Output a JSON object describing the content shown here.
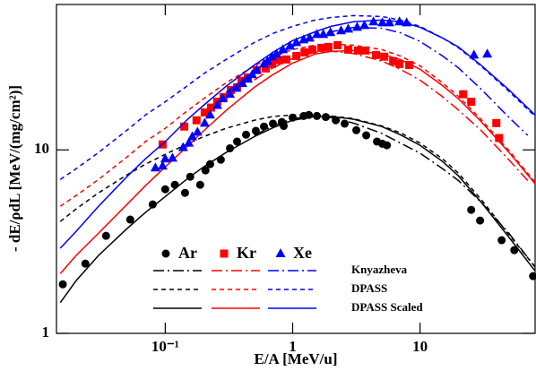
{
  "chart_data": {
    "type": "scatter",
    "x_label": "E/A [MeV/u]",
    "y_label": "- dE/ρdL [MeV/(mg/cm²)]",
    "x_log": true,
    "y_log": true,
    "xlim": [
      0.014,
      80
    ],
    "ylim": [
      1,
      62
    ],
    "xticks": [
      {
        "value": 0.1,
        "label": "10⁻¹"
      },
      1,
      10
    ],
    "yticks": [
      1,
      10
    ],
    "models": [
      {
        "name": "Knyazheva",
        "dash": "12 4 2 4"
      },
      {
        "name": "DPASS",
        "dash": "5 4"
      },
      {
        "name": "DPASS Scaled",
        "dash": "none"
      }
    ],
    "series": [
      {
        "name": "Ar",
        "color": "#000000",
        "marker": "circle",
        "x": [
          0.0157,
          0.0236,
          0.0343,
          0.0531,
          0.0797,
          0.1,
          0.119,
          0.143,
          0.157,
          0.188,
          0.207,
          0.225,
          0.273,
          0.322,
          0.366,
          0.431,
          0.514,
          0.596,
          0.7,
          0.823,
          0.851,
          1.0,
          1.22,
          1.34,
          1.55,
          1.82,
          2.18,
          2.56,
          3.16,
          3.78,
          4.59,
          5.06,
          5.49,
          25.2,
          29.6,
          43.7,
          54.9,
          77.1
        ],
        "values": [
          1.85,
          2.4,
          3.4,
          4.17,
          5.04,
          6.1,
          6.45,
          5.83,
          7.14,
          6.45,
          7.73,
          8.36,
          8.84,
          10.2,
          11.1,
          12.1,
          12.7,
          13.4,
          13.9,
          14.2,
          13.5,
          15.0,
          15.3,
          15.5,
          15.3,
          15.1,
          14.5,
          13.9,
          12.8,
          12.0,
          11.1,
          10.8,
          10.6,
          4.71,
          4.12,
          3.22,
          2.84,
          2.05
        ],
        "curves": [
          {
            "x": [
              0.5,
              0.7,
              1,
              1.5,
              2,
              3,
              5,
              7,
              10,
              15,
              20,
              30,
              50,
              80
            ],
            "values": [
              12.0,
              13.5,
              14.8,
              15.3,
              15.0,
              14.0,
              12.3,
              10.9,
              9.6,
              7.9,
              6.8,
              5.2,
              3.5,
              2.3
            ]
          },
          {
            "x": [
              0.015,
              0.02,
              0.03,
              0.05,
              0.07,
              0.1,
              0.15,
              0.2,
              0.3,
              0.5,
              0.7,
              1,
              1.5,
              2,
              3,
              5,
              7,
              10,
              15,
              20,
              30,
              50,
              80
            ],
            "values": [
              4.07,
              4.77,
              5.83,
              7.3,
              8.36,
              9.46,
              10.8,
              11.8,
              13.1,
              14.5,
              15.2,
              15.5,
              15.5,
              15.3,
              14.8,
              13.5,
              12.4,
              10.9,
              8.94,
              7.47,
              5.39,
              3.44,
              2.3
            ]
          },
          {
            "x": [
              0.015,
              0.02,
              0.03,
              0.05,
              0.07,
              0.1,
              0.15,
              0.2,
              0.3,
              0.5,
              0.7,
              1,
              1.5,
              2,
              3,
              5,
              7,
              10,
              15,
              20,
              30,
              50,
              80
            ],
            "values": [
              1.47,
              1.94,
              2.66,
              3.72,
              4.56,
              5.57,
              6.98,
              8.08,
              9.67,
              11.8,
              13.2,
              14.5,
              15.2,
              15.2,
              14.7,
              13.4,
              12.1,
              10.6,
              8.64,
              7.22,
              5.21,
              3.33,
              2.19
            ]
          }
        ]
      },
      {
        "name": "Kr",
        "color": "#ff0000",
        "marker": "square",
        "x": [
          0.0953,
          0.141,
          0.176,
          0.204,
          0.229,
          0.256,
          0.287,
          0.327,
          0.366,
          0.397,
          0.445,
          0.523,
          0.615,
          0.689,
          0.784,
          0.893,
          1.07,
          1.24,
          1.43,
          1.68,
          1.91,
          2.25,
          2.73,
          3.26,
          3.72,
          4.52,
          5.23,
          6.15,
          6.89,
          8.23,
          21.8,
          25.2,
          39.7,
          41.7
        ],
        "values": [
          10.7,
          13.4,
          14.5,
          16.0,
          17.0,
          18.3,
          19.4,
          21.2,
          21.9,
          23.8,
          24.8,
          27.2,
          27.8,
          29.4,
          30.8,
          31.1,
          32.5,
          34.0,
          35.2,
          36.0,
          36.4,
          37.2,
          35.2,
          34.8,
          34.8,
          32.9,
          32.2,
          30.4,
          29.4,
          29.0,
          20.1,
          18.3,
          14.0,
          11.6
        ],
        "curves": [
          {
            "x": [
              0.5,
              0.7,
              1,
              1.5,
              2,
              3,
              5,
              7,
              10,
              15,
              20,
              30,
              50,
              70
            ],
            "values": [
              24.0,
              28.0,
              31.5,
              34.0,
              34.5,
              33.5,
              30.5,
              27.5,
              24.0,
              19.5,
              16.5,
              12.8,
              8.8,
              6.8
            ]
          },
          {
            "x": [
              0.015,
              0.02,
              0.03,
              0.05,
              0.07,
              0.1,
              0.15,
              0.2,
              0.3,
              0.5,
              0.7,
              1,
              1.5,
              2,
              3,
              5,
              7,
              10,
              15,
              20,
              30,
              50,
              80
            ],
            "values": [
              4.93,
              5.64,
              6.9,
              9.14,
              11.1,
              13.1,
              16.4,
              19.0,
              23.2,
              28.7,
              32.2,
              35.2,
              37.2,
              37.7,
              37.2,
              35.2,
              32.5,
              28.7,
              23.2,
              19.6,
              14.7,
              9.89,
              6.67
            ]
          },
          {
            "x": [
              0.015,
              0.02,
              0.03,
              0.05,
              0.07,
              0.1,
              0.15,
              0.2,
              0.3,
              0.5,
              0.7,
              1,
              1.5,
              2,
              3,
              5,
              7,
              10,
              15,
              20,
              30,
              50,
              80
            ],
            "values": [
              2.12,
              2.66,
              3.52,
              5.04,
              6.38,
              8.08,
              10.5,
              12.7,
              16.4,
              21.9,
              25.7,
              29.7,
              33.3,
              34.4,
              34.8,
              33.3,
              31.1,
              27.5,
              22.4,
              19.0,
              14.3,
              9.67,
              6.53
            ]
          }
        ]
      },
      {
        "name": "Xe",
        "color": "#0000ff",
        "marker": "triangle",
        "x": [
          0.0837,
          0.0953,
          0.1,
          0.114,
          0.138,
          0.153,
          0.163,
          0.179,
          0.204,
          0.225,
          0.256,
          0.282,
          0.322,
          0.36,
          0.403,
          0.445,
          0.482,
          0.523,
          0.596,
          0.635,
          0.689,
          0.747,
          0.837,
          0.953,
          1.07,
          1.22,
          1.36,
          1.55,
          1.74,
          1.98,
          2.4,
          2.73,
          3.21,
          3.66,
          4.31,
          5.06,
          5.76,
          6.89,
          7.84,
          26.5,
          33.7
        ],
        "values": [
          7.99,
          8.17,
          8.94,
          9.03,
          10.3,
          10.9,
          11.8,
          12.5,
          14.0,
          15.5,
          17.5,
          19.0,
          20.1,
          21.7,
          23.0,
          24.3,
          25.7,
          27.2,
          29.4,
          30.4,
          32.2,
          33.3,
          35.2,
          36.8,
          38.5,
          39.8,
          40.7,
          42.6,
          42.6,
          43.6,
          44.6,
          45.6,
          46.6,
          47.7,
          49.9,
          49.3,
          49.3,
          49.9,
          49.3,
          32.9,
          33.3
        ],
        "curves": [
          {
            "x": [
              0.3,
              0.5,
              0.7,
              1,
              1.5,
              2,
              3,
              5,
              7,
              10,
              15,
              20,
              30,
              50,
              70
            ],
            "values": [
              20.5,
              27.0,
              31.5,
              36.5,
              41.5,
              44.0,
              46.5,
              46.0,
              43.5,
              39.0,
              32.5,
              28.0,
              21.5,
              15.0,
              12.0
            ]
          },
          {
            "x": [
              0.015,
              0.02,
              0.03,
              0.05,
              0.07,
              0.1,
              0.15,
              0.2,
              0.3,
              0.5,
              0.7,
              1,
              1.5,
              2,
              3,
              5,
              7,
              10,
              15,
              20,
              30,
              50,
              80
            ],
            "values": [
              6.9,
              7.9,
              9.67,
              12.8,
              15.5,
              18.3,
              22.4,
              26.0,
              31.1,
              38.5,
              43.1,
              47.1,
              51.0,
              52.7,
              53.9,
              53.3,
              51.0,
              47.1,
              40.7,
              36.0,
              28.7,
              20.8,
              15.2
            ]
          },
          {
            "x": [
              0.015,
              0.02,
              0.03,
              0.05,
              0.07,
              0.1,
              0.15,
              0.2,
              0.3,
              0.5,
              0.7,
              1,
              1.5,
              2,
              3,
              5,
              7,
              10,
              15,
              20,
              30,
              50,
              80
            ],
            "values": [
              2.91,
              3.6,
              4.93,
              7.14,
              8.94,
              11.1,
              14.7,
              17.5,
              22.2,
              29.0,
              34.0,
              39.4,
              44.0,
              47.1,
              49.9,
              51.0,
              49.9,
              46.6,
              40.7,
              36.4,
              29.0,
              21.2,
              15.5
            ]
          }
        ]
      }
    ]
  }
}
